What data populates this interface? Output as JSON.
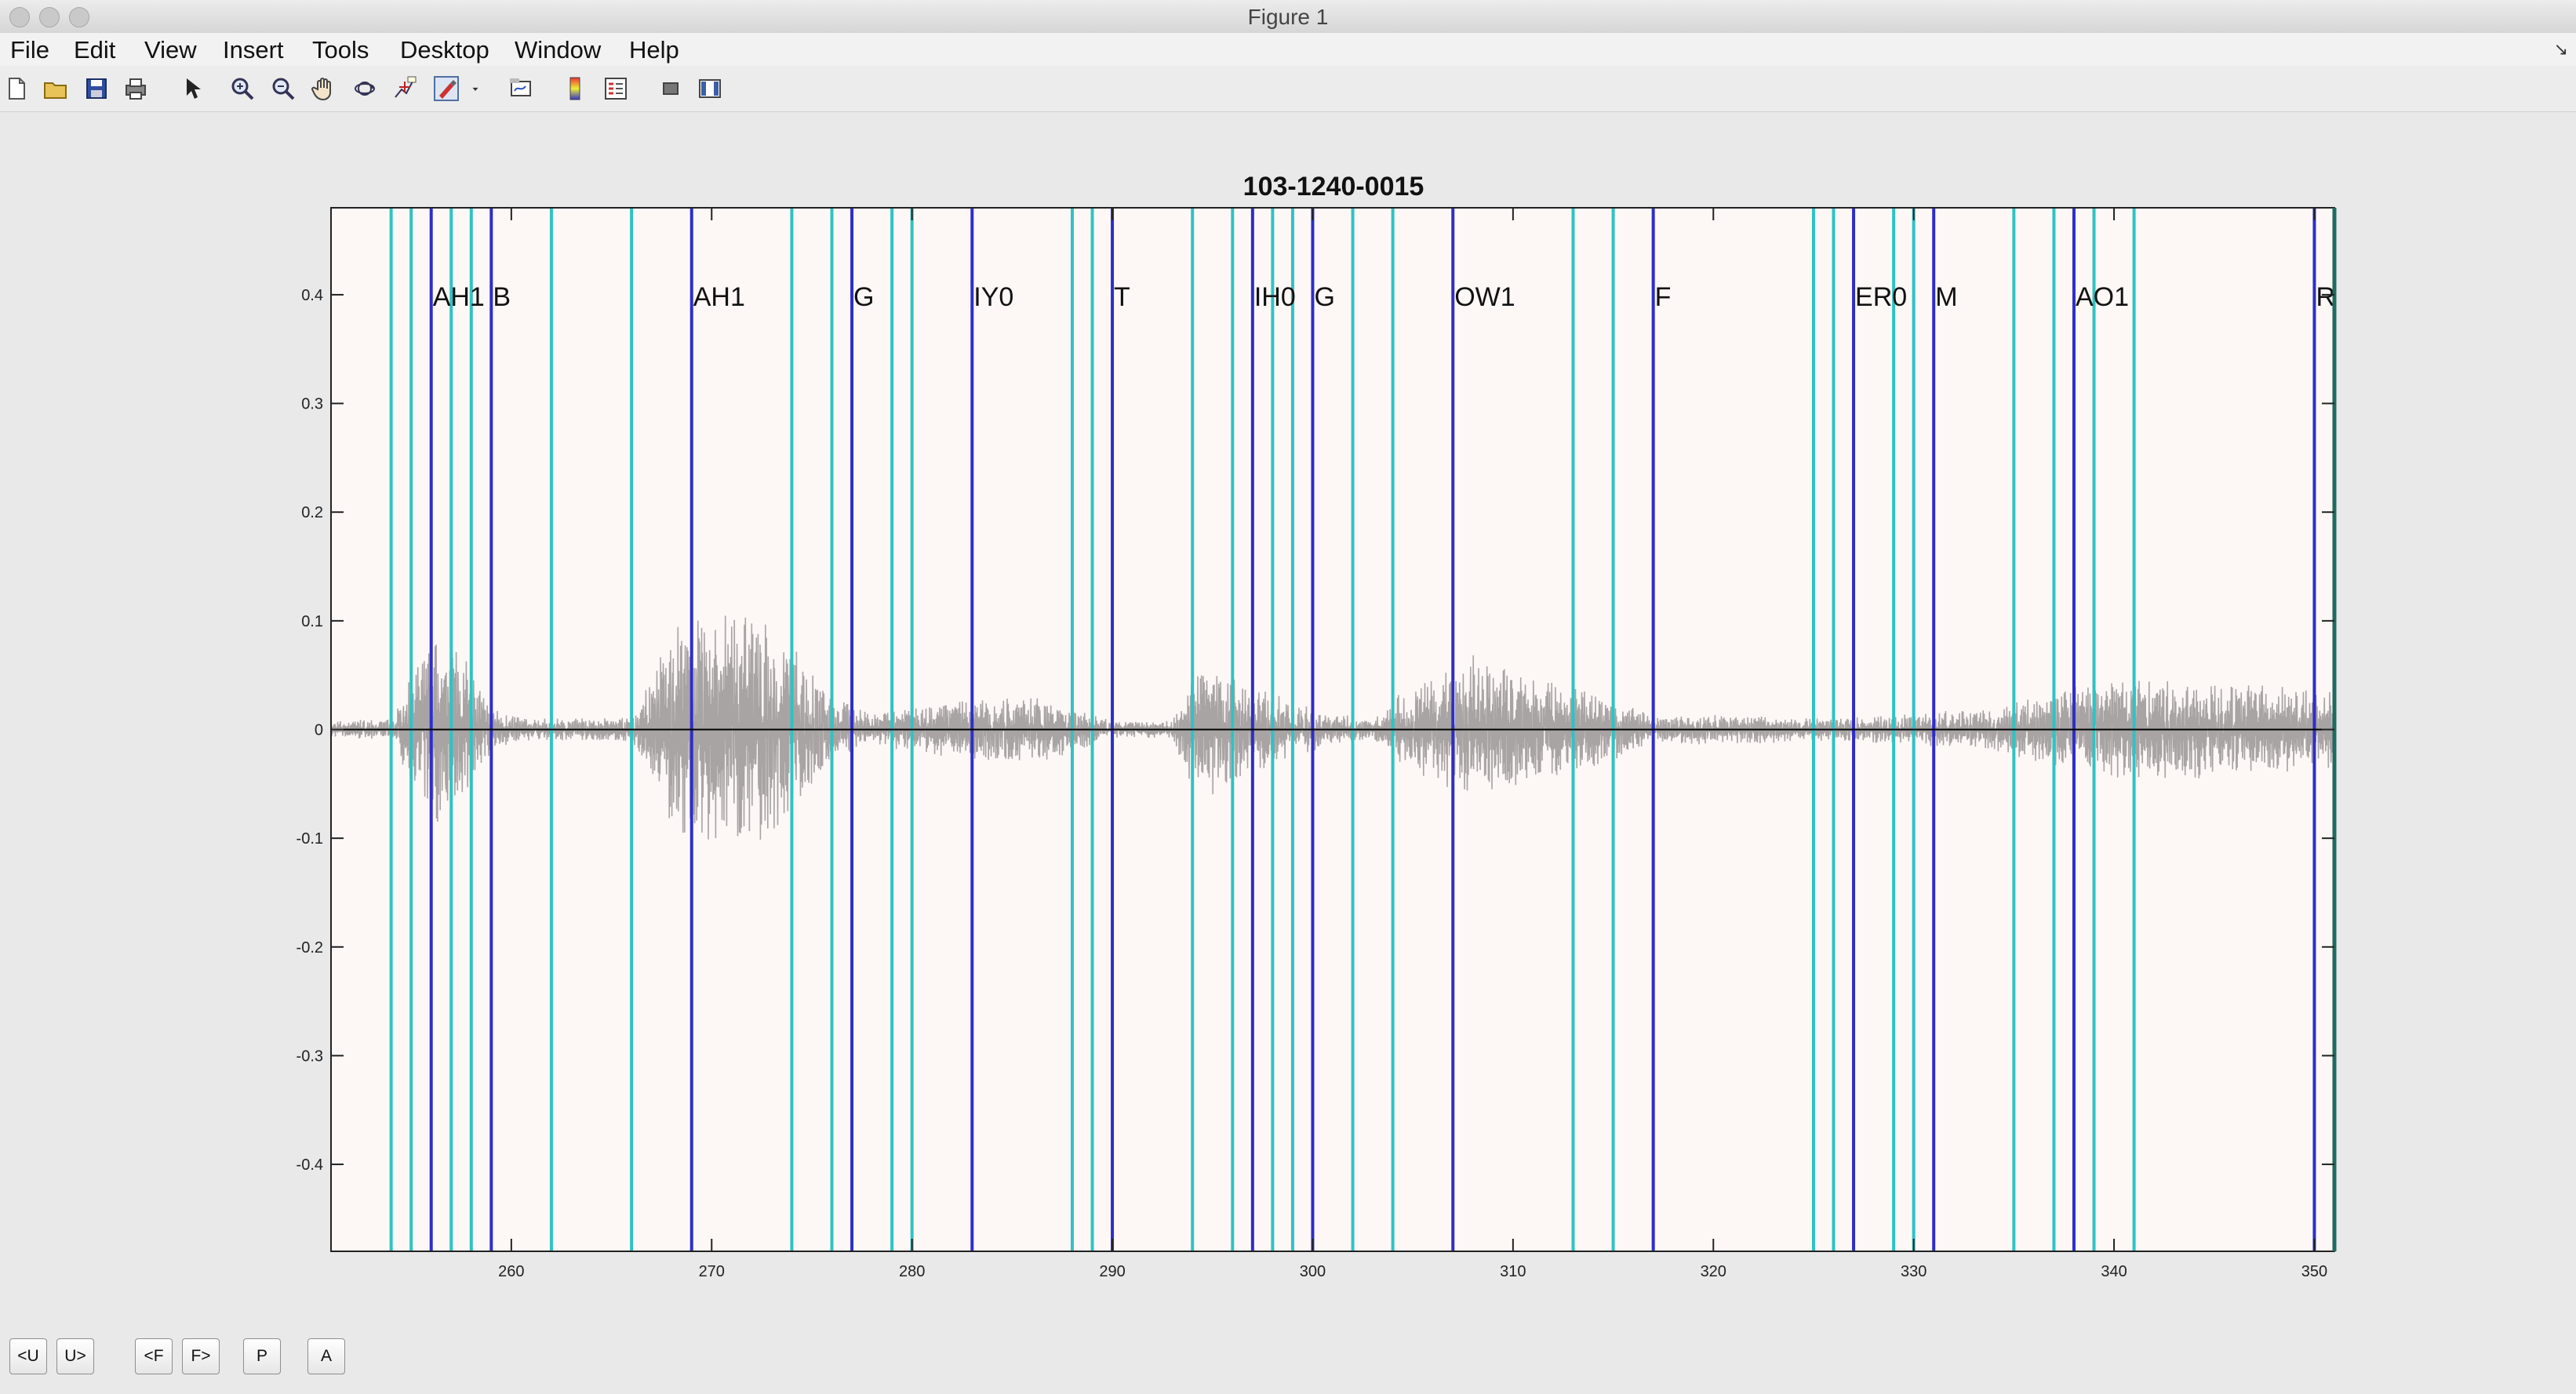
{
  "window": {
    "title": "Figure 1"
  },
  "menu": {
    "file": "File",
    "edit": "Edit",
    "view": "View",
    "insert": "Insert",
    "tools": "Tools",
    "desktop": "Desktop",
    "window": "Window",
    "help": "Help"
  },
  "toolbar": {
    "icons": [
      "new-figure-icon",
      "open-file-icon",
      "save-icon",
      "print-icon",
      "edit-plot-arrow-icon",
      "zoom-in-icon",
      "zoom-out-icon",
      "pan-hand-icon",
      "rotate-3d-icon",
      "data-cursor-icon",
      "brush-icon",
      "brush-dropdown-icon",
      "link-plot-icon",
      "colorbar-icon",
      "legend-icon",
      "hide-plot-tools-icon",
      "show-plot-tools-icon"
    ]
  },
  "controls": {
    "prev_utt": "<U",
    "next_utt": "U>",
    "prev_frame": "<F",
    "next_frame": "F>",
    "play": "P",
    "all": "A"
  },
  "colors": {
    "plot_bg": "#fdf8f6",
    "waveform": "#a9a4a4",
    "phone_boundary": "#2e2ec9",
    "frame_boundary": "#2ec3c3",
    "zero_line": "#000000",
    "right_edge": "#1f6b5f"
  },
  "chart_data": {
    "type": "line",
    "title": "103-1240-0015",
    "xlabel": "",
    "ylabel": "",
    "xlim": [
      251,
      351
    ],
    "ylim": [
      -0.48,
      0.48
    ],
    "x_ticks": [
      260,
      270,
      280,
      290,
      300,
      310,
      320,
      330,
      340,
      350
    ],
    "y_ticks": [
      0.4,
      0.3,
      0.2,
      0.1,
      0,
      -0.1,
      -0.2,
      -0.3,
      -0.4
    ],
    "y_tick_labels": [
      "0.4",
      "0.3",
      "0.2",
      "0.1",
      "0",
      "-0.1",
      "-0.2",
      "-0.3",
      "-0.4"
    ],
    "phone_label_y": 0.39,
    "phone_boundaries": [
      {
        "x": 256.0,
        "label": "AH1"
      },
      {
        "x": 259.0,
        "label": "B"
      },
      {
        "x": 269.0,
        "label": "AH1"
      },
      {
        "x": 277.0,
        "label": "G"
      },
      {
        "x": 283.0,
        "label": "IY0"
      },
      {
        "x": 290.0,
        "label": "T"
      },
      {
        "x": 297.0,
        "label": "IH0"
      },
      {
        "x": 300.0,
        "label": "G"
      },
      {
        "x": 307.0,
        "label": "OW1"
      },
      {
        "x": 317.0,
        "label": "F"
      },
      {
        "x": 327.0,
        "label": "ER0"
      },
      {
        "x": 331.0,
        "label": "M"
      },
      {
        "x": 338.0,
        "label": "AO1"
      },
      {
        "x": 350.0,
        "label": "R"
      }
    ],
    "frame_boundaries": [
      254,
      255,
      257,
      258,
      262,
      266,
      274,
      276,
      279,
      280,
      288,
      289,
      294,
      296,
      298,
      299,
      302,
      304,
      313,
      315,
      325,
      326,
      329,
      330,
      335,
      337,
      339,
      341
    ],
    "waveform_envelope": [
      {
        "x": 251,
        "amp": 0.008
      },
      {
        "x": 254,
        "amp": 0.01
      },
      {
        "x": 255,
        "amp": 0.05
      },
      {
        "x": 256,
        "amp": 0.09
      },
      {
        "x": 257,
        "amp": 0.08
      },
      {
        "x": 258,
        "amp": 0.06
      },
      {
        "x": 259,
        "amp": 0.02
      },
      {
        "x": 261,
        "amp": 0.01
      },
      {
        "x": 266,
        "amp": 0.012
      },
      {
        "x": 267,
        "amp": 0.05
      },
      {
        "x": 268,
        "amp": 0.1
      },
      {
        "x": 270,
        "amp": 0.12
      },
      {
        "x": 272,
        "amp": 0.11
      },
      {
        "x": 274,
        "amp": 0.08
      },
      {
        "x": 276,
        "amp": 0.03
      },
      {
        "x": 278,
        "amp": 0.015
      },
      {
        "x": 283,
        "amp": 0.03
      },
      {
        "x": 287,
        "amp": 0.03
      },
      {
        "x": 290,
        "amp": 0.008
      },
      {
        "x": 293,
        "amp": 0.008
      },
      {
        "x": 294,
        "amp": 0.06
      },
      {
        "x": 295,
        "amp": 0.06
      },
      {
        "x": 297,
        "amp": 0.04
      },
      {
        "x": 300,
        "amp": 0.02
      },
      {
        "x": 303,
        "amp": 0.008
      },
      {
        "x": 304,
        "amp": 0.03
      },
      {
        "x": 306,
        "amp": 0.05
      },
      {
        "x": 308,
        "amp": 0.07
      },
      {
        "x": 311,
        "amp": 0.05
      },
      {
        "x": 315,
        "amp": 0.03
      },
      {
        "x": 317,
        "amp": 0.012
      },
      {
        "x": 320,
        "amp": 0.015
      },
      {
        "x": 326,
        "amp": 0.01
      },
      {
        "x": 330,
        "amp": 0.015
      },
      {
        "x": 334,
        "amp": 0.02
      },
      {
        "x": 338,
        "amp": 0.04
      },
      {
        "x": 341,
        "amp": 0.05
      },
      {
        "x": 345,
        "amp": 0.045
      },
      {
        "x": 351,
        "amp": 0.035
      }
    ]
  }
}
